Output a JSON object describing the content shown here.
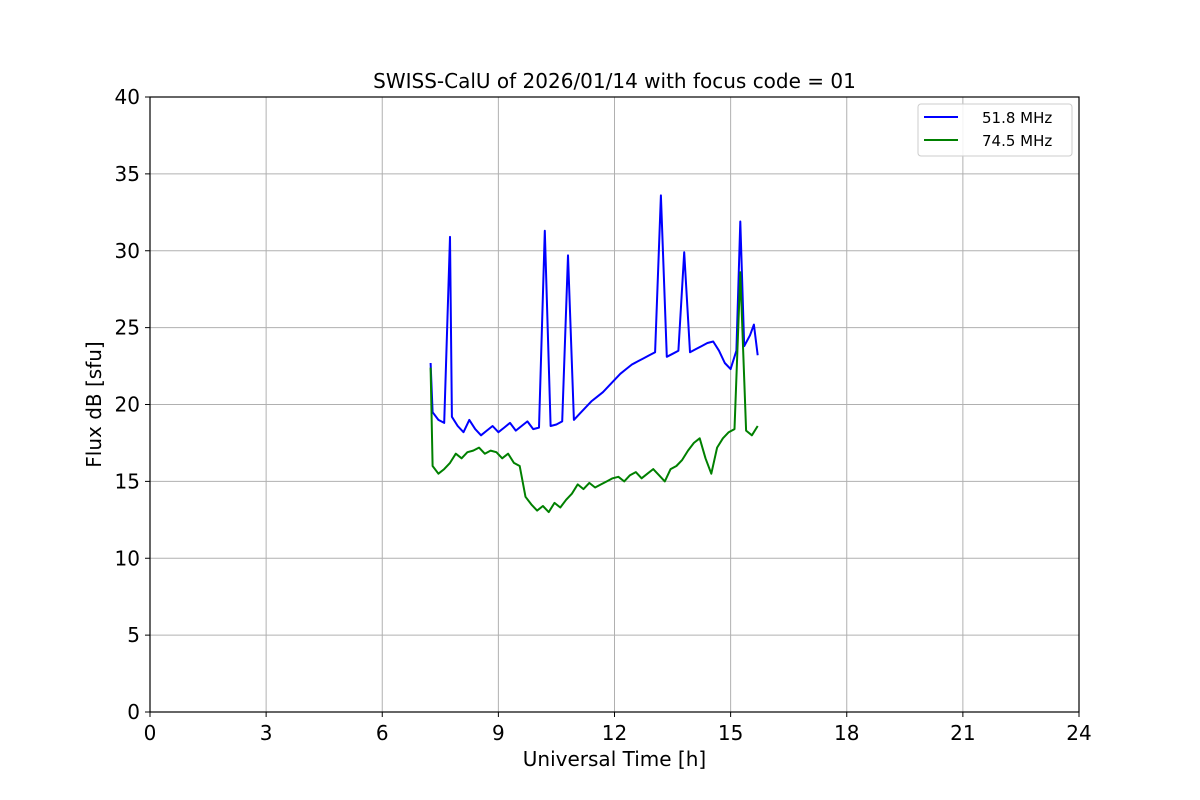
{
  "chart_data": {
    "type": "line",
    "title": "SWISS-CalU of 2026/01/14 with focus code = 01",
    "xlabel": "Universal Time [h]",
    "ylabel": "Flux dB [sfu]",
    "xlim": [
      0,
      24
    ],
    "ylim": [
      0,
      40
    ],
    "xticks": [
      0,
      3,
      6,
      9,
      12,
      15,
      18,
      21,
      24
    ],
    "yticks": [
      0,
      5,
      10,
      15,
      20,
      25,
      30,
      35,
      40
    ],
    "grid": true,
    "legend_position": "top-right",
    "series": [
      {
        "name": "51.8 MHz",
        "color": "#0000ff",
        "x": [
          7.25,
          7.3,
          7.45,
          7.6,
          7.75,
          7.8,
          7.95,
          8.1,
          8.25,
          8.4,
          8.55,
          8.7,
          8.85,
          9.0,
          9.15,
          9.3,
          9.45,
          9.6,
          9.75,
          9.9,
          10.05,
          10.2,
          10.35,
          10.5,
          10.65,
          10.8,
          10.95,
          11.1,
          11.25,
          11.4,
          11.55,
          11.7,
          11.85,
          12.0,
          12.15,
          12.3,
          12.45,
          12.6,
          12.75,
          12.9,
          13.05,
          13.2,
          13.35,
          13.5,
          13.65,
          13.8,
          13.95,
          14.1,
          14.25,
          14.4,
          14.55,
          14.7,
          14.85,
          15.0,
          15.15,
          15.25,
          15.35,
          15.5,
          15.6,
          15.7
        ],
        "y": [
          22.7,
          19.5,
          19.0,
          18.8,
          30.9,
          19.2,
          18.6,
          18.2,
          19.0,
          18.4,
          18.0,
          18.3,
          18.6,
          18.2,
          18.5,
          18.8,
          18.3,
          18.6,
          18.9,
          18.4,
          18.5,
          31.3,
          18.6,
          18.7,
          18.9,
          29.7,
          19.0,
          19.4,
          19.8,
          20.2,
          20.5,
          20.8,
          21.2,
          21.6,
          22.0,
          22.3,
          22.6,
          22.8,
          23.0,
          23.2,
          23.4,
          33.6,
          23.1,
          23.3,
          23.5,
          29.9,
          23.4,
          23.6,
          23.8,
          24.0,
          24.1,
          23.5,
          22.7,
          22.3,
          23.5,
          31.9,
          23.8,
          24.5,
          25.2,
          23.2
        ]
      },
      {
        "name": "74.5 MHz",
        "color": "#008000",
        "x": [
          7.25,
          7.3,
          7.45,
          7.6,
          7.75,
          7.9,
          8.05,
          8.2,
          8.35,
          8.5,
          8.65,
          8.8,
          8.95,
          9.1,
          9.25,
          9.4,
          9.55,
          9.7,
          9.85,
          10.0,
          10.15,
          10.3,
          10.45,
          10.6,
          10.75,
          10.9,
          11.05,
          11.2,
          11.35,
          11.5,
          11.65,
          11.8,
          11.95,
          12.1,
          12.25,
          12.4,
          12.55,
          12.7,
          12.85,
          13.0,
          13.15,
          13.3,
          13.45,
          13.6,
          13.75,
          13.9,
          14.05,
          14.2,
          14.35,
          14.5,
          14.65,
          14.8,
          14.95,
          15.1,
          15.25,
          15.4,
          15.55,
          15.7
        ],
        "y": [
          22.4,
          16.0,
          15.5,
          15.8,
          16.2,
          16.8,
          16.5,
          16.9,
          17.0,
          17.2,
          16.8,
          17.0,
          16.9,
          16.5,
          16.8,
          16.2,
          16.0,
          14.0,
          13.5,
          13.1,
          13.4,
          13.0,
          13.6,
          13.3,
          13.8,
          14.2,
          14.8,
          14.5,
          14.9,
          14.6,
          14.8,
          15.0,
          15.2,
          15.3,
          15.0,
          15.4,
          15.6,
          15.2,
          15.5,
          15.8,
          15.4,
          15.0,
          15.8,
          16.0,
          16.4,
          17.0,
          17.5,
          17.8,
          16.5,
          15.5,
          17.2,
          17.8,
          18.2,
          18.4,
          28.6,
          18.3,
          18.0,
          18.6
        ]
      }
    ]
  }
}
